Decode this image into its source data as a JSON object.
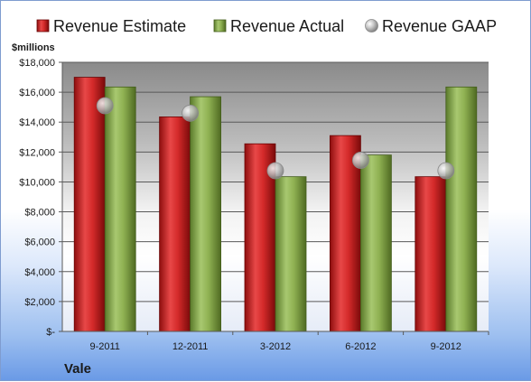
{
  "chart_data": {
    "type": "bar",
    "unit_label": "$millions",
    "company": "Vale",
    "categories": [
      "9-2011",
      "12-2011",
      "3-2012",
      "6-2012",
      "9-2012"
    ],
    "series": [
      {
        "name": "Revenue Estimate",
        "type": "bar",
        "color": "#d42a2a",
        "values": [
          17000,
          14350,
          12550,
          13100,
          10350
        ]
      },
      {
        "name": "Revenue Actual",
        "type": "bar",
        "color": "#8fb152",
        "values": [
          16350,
          15700,
          10350,
          11800,
          16350
        ]
      },
      {
        "name": "Revenue GAAP",
        "type": "marker",
        "color": "#b8b8b8",
        "values": [
          15100,
          14600,
          10750,
          11450,
          10750
        ]
      }
    ],
    "ylim": [
      0,
      18000
    ],
    "yticks": [
      0,
      2000,
      4000,
      6000,
      8000,
      10000,
      12000,
      14000,
      16000,
      18000
    ],
    "ytick_labels": [
      "$-",
      "$2,000",
      "$4,000",
      "$6,000",
      "$8,000",
      "$10,000",
      "$12,000",
      "$14,000",
      "$16,000",
      "$18,000"
    ],
    "grid": true,
    "legend_position": "top"
  }
}
